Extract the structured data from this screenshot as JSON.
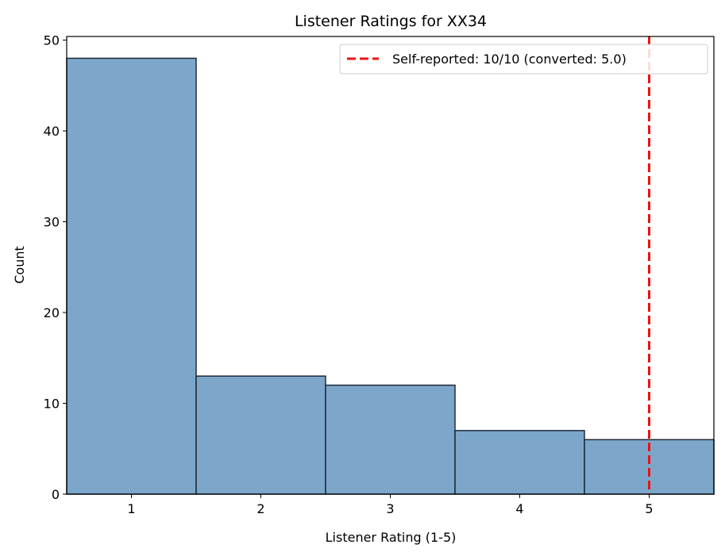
{
  "chart_data": {
    "type": "bar",
    "title": "Listener Ratings for XX34",
    "xlabel": "Listener Rating (1-5)",
    "ylabel": "Count",
    "categories": [
      "1",
      "2",
      "3",
      "4",
      "5"
    ],
    "x": [
      1,
      2,
      3,
      4,
      5
    ],
    "values": [
      48,
      13,
      12,
      7,
      6
    ],
    "xlim": [
      0.5,
      5.5
    ],
    "ylim": [
      0,
      50
    ],
    "xticks": [
      1,
      2,
      3,
      4,
      5
    ],
    "yticks": [
      0,
      10,
      20,
      30,
      40,
      50
    ],
    "grid": false,
    "bar_color": "#7ca7cb",
    "bar_edge_color": "#1f2a36",
    "reference_line": {
      "x": 5,
      "label": "Self-reported: 10/10 (converted: 5.0)",
      "color": "#ee1111",
      "style": "dashed"
    },
    "legend": {
      "placement": "top-right",
      "entries": [
        "Self-reported: 10/10 (converted: 5.0)"
      ]
    }
  }
}
